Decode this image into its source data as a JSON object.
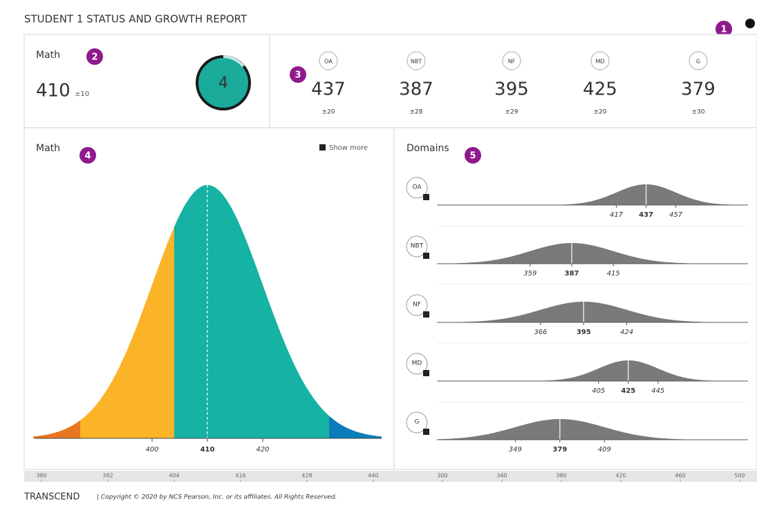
{
  "title": "STUDENT 1 STATUS AND GROWTH REPORT",
  "badges": [
    "1",
    "2",
    "3",
    "4",
    "5"
  ],
  "overall": {
    "subject": "Math",
    "score": 410,
    "error": 10,
    "error_label": "±10",
    "level": 4
  },
  "domains": [
    {
      "code": "OA",
      "score": 437,
      "error": 20,
      "error_label": "±20",
      "low": 417,
      "high": 457
    },
    {
      "code": "NBT",
      "score": 387,
      "error": 28,
      "error_label": "±28",
      "low": 359,
      "high": 415
    },
    {
      "code": "NF",
      "score": 395,
      "error": 29,
      "error_label": "±29",
      "low": 366,
      "high": 424
    },
    {
      "code": "MD",
      "score": 425,
      "error": 20,
      "error_label": "±20",
      "low": 405,
      "high": 445
    },
    {
      "code": "G",
      "score": 379,
      "error": 30,
      "error_label": "±30",
      "low": 349,
      "high": 409
    }
  ],
  "distribution": {
    "title": "Math",
    "show_more": "Show more",
    "low": 400,
    "high": 420,
    "cut_scores": [
      387,
      404,
      432
    ],
    "colors": [
      "#e87722",
      "#fbb328",
      "#16b2a4",
      "#0b7db8"
    ],
    "scale_ticks": [
      380,
      392,
      404,
      416,
      428,
      440
    ]
  },
  "domain_panel": {
    "title": "Domains",
    "curve_color": "#7a7a7a",
    "scale_ticks": [
      300,
      340,
      380,
      420,
      460,
      500
    ]
  },
  "footer": {
    "brand": "TRANSCEND",
    "copyright": "| Copyright © 2020 by NCS Pearson, Inc. or its affiliates. All Rights Reserved."
  }
}
